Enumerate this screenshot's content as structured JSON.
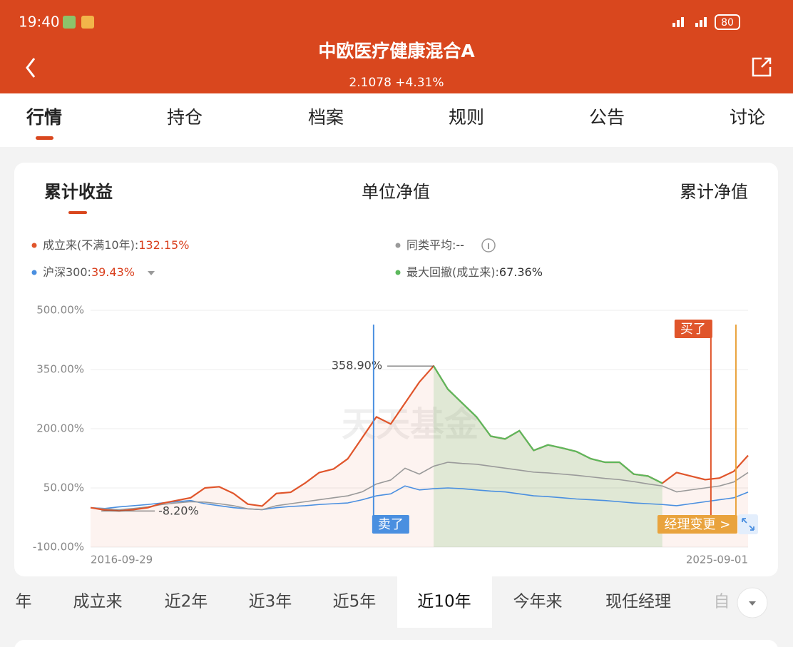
{
  "status": {
    "time": "19:40",
    "battery": "80"
  },
  "header": {
    "title": "中欧医疗健康混合A",
    "subtitle": "2.1078 +4.31%"
  },
  "tabs": [
    "行情",
    "持仓",
    "档案",
    "规则",
    "公告",
    "讨论"
  ],
  "subtabs": [
    "累计收益",
    "单位净值",
    "累计净值"
  ],
  "watermark": "天天基金",
  "periods": [
    "年",
    "成立来",
    "近2年",
    "近3年",
    "近5年",
    "近10年",
    "今年来",
    "现任经理",
    "自"
  ],
  "chart_data": {
    "type": "line",
    "categories": [
      "2016-09-29",
      null,
      null,
      null,
      null,
      null,
      null,
      null,
      null,
      null,
      null,
      null,
      null,
      null,
      null,
      null,
      null,
      null,
      null,
      null,
      null,
      null,
      null,
      null,
      null,
      null,
      null,
      null,
      null,
      null,
      null,
      null,
      null,
      null,
      null,
      null,
      null,
      null,
      null,
      null,
      null,
      null,
      null,
      null,
      null,
      null,
      "2025-09-01"
    ],
    "ylim": [
      -100,
      500
    ],
    "yticks": [
      {
        "value": 500,
        "label": "500.00%"
      },
      {
        "value": 350,
        "label": "350.00%"
      },
      {
        "value": 200,
        "label": "200.00%"
      },
      {
        "value": 50,
        "label": "50.00%"
      },
      {
        "value": -100,
        "label": "-100.00%"
      }
    ],
    "grid": true,
    "series": [
      {
        "name": "成立来(不满10年):",
        "value_label": "132.15%",
        "color": "#e0552b",
        "values": [
          0,
          -6,
          -8.2,
          -5,
          0,
          11,
          18,
          25,
          50,
          53,
          36,
          9,
          4,
          36,
          39,
          62,
          89,
          98,
          124,
          177,
          230,
          212,
          265,
          318,
          358.9,
          300,
          265,
          230,
          181,
          174,
          195,
          145,
          159,
          151,
          142,
          124,
          115,
          115,
          85,
          80,
          62,
          89,
          80,
          71,
          75,
          92,
          132.15
        ]
      },
      {
        "name": "同类平均:",
        "value_label": "--",
        "color": "#9a9a9a",
        "values": [
          0,
          -3,
          -5,
          -2,
          2,
          8,
          12,
          15,
          14,
          10,
          5,
          -3,
          -5,
          5,
          10,
          15,
          20,
          25,
          30,
          40,
          60,
          70,
          100,
          85,
          105,
          115,
          112,
          110,
          105,
          100,
          95,
          90,
          88,
          85,
          82,
          78,
          74,
          71,
          66,
          60,
          55,
          40,
          45,
          50,
          55,
          65,
          89
        ]
      },
      {
        "name": "沪深300:",
        "value_label": "39.43%",
        "color": "#4a8fe0",
        "values": [
          0,
          -2,
          2,
          5,
          8,
          12,
          15,
          18,
          10,
          5,
          0,
          -3,
          -5,
          0,
          3,
          5,
          8,
          10,
          12,
          20,
          30,
          35,
          55,
          45,
          48,
          50,
          48,
          45,
          42,
          40,
          35,
          30,
          28,
          25,
          22,
          20,
          18,
          15,
          12,
          10,
          8,
          5,
          10,
          15,
          20,
          25,
          39.43
        ]
      }
    ],
    "drawdown": {
      "name": "最大回撤(成立来):",
      "value_label": "67.36%",
      "color": "#5cb85c"
    },
    "annotations": [
      {
        "text": "358.90%",
        "index": 24
      },
      {
        "text": "-8.20%",
        "index": 2
      },
      {
        "text": "卖了",
        "index": 20
      },
      {
        "text": "买了",
        "index": 43
      },
      {
        "text": "经理变更 >",
        "index": 45
      }
    ]
  }
}
